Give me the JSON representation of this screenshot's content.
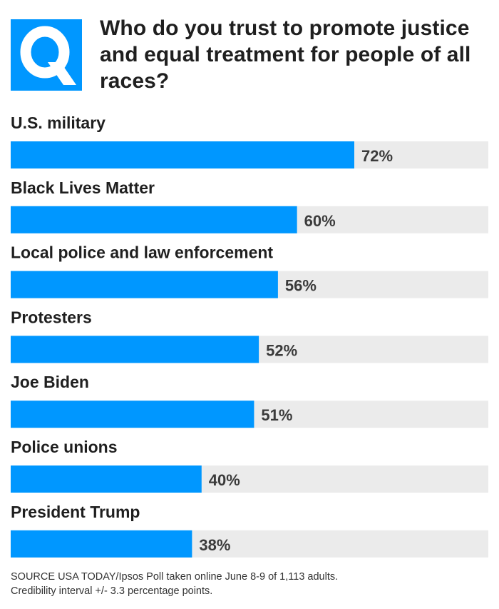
{
  "badge": {
    "letter": "Q",
    "color": "#0097ff",
    "icon": "q-letter-icon"
  },
  "title": "Who do you trust to promote justice and equal treatment for people of all races?",
  "chart_data": {
    "type": "bar",
    "orientation": "horizontal",
    "title": "Who do you trust to promote justice and equal treatment for people of all races?",
    "categories": [
      "U.S. military",
      "Black Lives Matter",
      "Local police and law enforcement",
      "Protesters",
      "Joe Biden",
      "Police unions",
      "President Trump"
    ],
    "values": [
      72,
      60,
      56,
      52,
      51,
      40,
      38
    ],
    "value_labels": [
      "72%",
      "60%",
      "56%",
      "52%",
      "51%",
      "40%",
      "38%"
    ],
    "xlim": [
      0,
      100
    ],
    "unit": "%",
    "bar_color": "#0097ff",
    "track_color": "#ebebeb",
    "grid": false,
    "legend": "none"
  },
  "source": {
    "line1": "SOURCE  USA TODAY/Ipsos Poll taken online June 8-9 of 1,113 adults.",
    "line2": "Credibility interval +/- 3.3 percentage points."
  }
}
